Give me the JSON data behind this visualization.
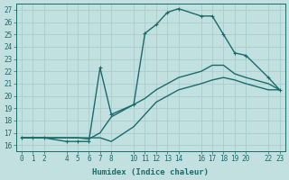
{
  "xlabel": "Humidex (Indice chaleur)",
  "bg_color": "#c2e0e0",
  "line_color": "#1a6b6b",
  "grid_color": "#a8cccc",
  "xlim": [
    -0.5,
    23.5
  ],
  "ylim": [
    15.5,
    27.5
  ],
  "xticks": [
    0,
    1,
    2,
    4,
    5,
    6,
    7,
    8,
    10,
    11,
    12,
    13,
    14,
    16,
    17,
    18,
    19,
    20,
    22,
    23
  ],
  "yticks": [
    16,
    17,
    18,
    19,
    20,
    21,
    22,
    23,
    24,
    25,
    26,
    27
  ],
  "series": [
    {
      "x": [
        0,
        1,
        2,
        4,
        5,
        6,
        7,
        8,
        10,
        11,
        12,
        13,
        14,
        16,
        17,
        18,
        19,
        20,
        22,
        23
      ],
      "y": [
        16.6,
        16.6,
        16.6,
        16.6,
        16.6,
        16.5,
        17.0,
        18.3,
        19.3,
        19.8,
        20.5,
        21.0,
        21.5,
        22.0,
        22.5,
        22.5,
        21.8,
        21.5,
        21.0,
        20.5
      ],
      "marker": null,
      "lw": 1.0
    },
    {
      "x": [
        0,
        1,
        2,
        4,
        5,
        6,
        7,
        8,
        10,
        11,
        12,
        13,
        14,
        16,
        17,
        18,
        19,
        20,
        22,
        23
      ],
      "y": [
        16.6,
        16.6,
        16.6,
        16.6,
        16.6,
        16.6,
        16.6,
        16.3,
        17.5,
        18.5,
        19.5,
        20.0,
        20.5,
        21.0,
        21.3,
        21.5,
        21.3,
        21.0,
        20.5,
        20.5
      ],
      "marker": null,
      "lw": 1.0
    },
    {
      "x": [
        0,
        1,
        2,
        4,
        5,
        6,
        7,
        8,
        10,
        11,
        12,
        13,
        14,
        16,
        17,
        18,
        19,
        20,
        22,
        23
      ],
      "y": [
        16.6,
        16.6,
        16.6,
        16.3,
        16.3,
        16.3,
        22.3,
        18.5,
        19.3,
        25.1,
        25.8,
        26.8,
        27.1,
        26.5,
        26.5,
        25.0,
        23.5,
        23.3,
        21.5,
        20.5
      ],
      "marker": "+",
      "lw": 1.0
    }
  ]
}
